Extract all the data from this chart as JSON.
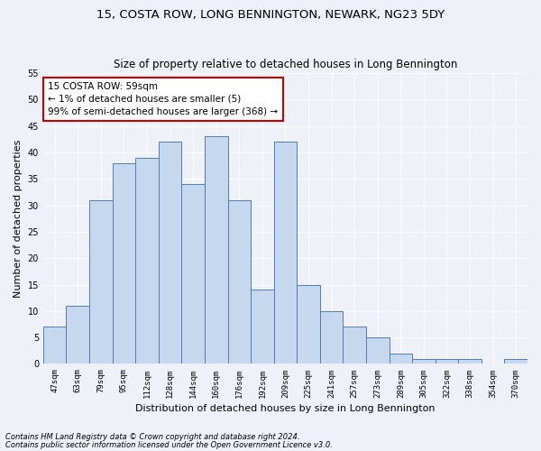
{
  "title": "15, COSTA ROW, LONG BENNINGTON, NEWARK, NG23 5DY",
  "subtitle": "Size of property relative to detached houses in Long Bennington",
  "xlabel": "Distribution of detached houses by size in Long Bennington",
  "ylabel": "Number of detached properties",
  "categories": [
    "47sqm",
    "63sqm",
    "79sqm",
    "95sqm",
    "112sqm",
    "128sqm",
    "144sqm",
    "160sqm",
    "176sqm",
    "192sqm",
    "209sqm",
    "225sqm",
    "241sqm",
    "257sqm",
    "273sqm",
    "289sqm",
    "305sqm",
    "322sqm",
    "338sqm",
    "354sqm",
    "370sqm"
  ],
  "values": [
    7,
    11,
    31,
    38,
    39,
    42,
    34,
    43,
    31,
    14,
    42,
    15,
    10,
    7,
    5,
    2,
    1,
    1,
    1,
    0,
    1
  ],
  "bar_color": "#c5d8ed",
  "bar_edge_color": "#4d7dba",
  "annotation_lines": [
    "15 COSTA ROW: 59sqm",
    "← 1% of detached houses are smaller (5)",
    "99% of semi-detached houses are larger (368) →"
  ],
  "annotation_box_color": "#ffffff",
  "annotation_box_edge_color": "#cc0000",
  "background_color": "#eef2f8",
  "grid_color": "#ffffff",
  "footnote1": "Contains HM Land Registry data © Crown copyright and database right 2024.",
  "footnote2": "Contains public sector information licensed under the Open Government Licence v3.0.",
  "ylim": [
    0,
    55
  ],
  "yticks": [
    0,
    5,
    10,
    15,
    20,
    25,
    30,
    35,
    40,
    45,
    50,
    55
  ],
  "title_fontsize": 9.5,
  "subtitle_fontsize": 8.5,
  "tick_fontsize": 6.5,
  "ylabel_fontsize": 8,
  "xlabel_fontsize": 8,
  "annot_fontsize": 7.5,
  "footnote_fontsize": 6
}
